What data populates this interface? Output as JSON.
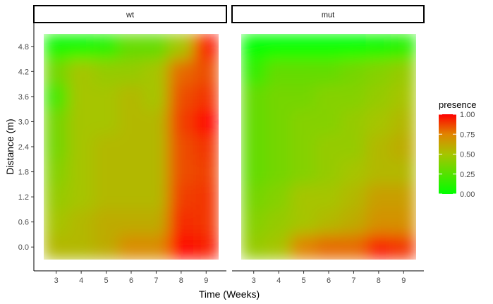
{
  "chart_data": {
    "type": "heatmap",
    "xlabel": "Time (Weeks)",
    "ylabel": "Distance (m)",
    "x": [
      3,
      4,
      5,
      6,
      7,
      8,
      9
    ],
    "y": [
      0.0,
      0.6,
      1.2,
      1.8,
      2.4,
      3.0,
      3.6,
      4.2,
      4.8
    ],
    "x_tick_labels": [
      "3",
      "4",
      "5",
      "6",
      "7",
      "8",
      "9"
    ],
    "y_tick_labels": [
      "0.0",
      "0.6",
      "1.2",
      "1.8",
      "2.4",
      "3.0",
      "3.6",
      "4.2",
      "4.8"
    ],
    "xlim": [
      2.5,
      9.5
    ],
    "ylim": [
      -0.3,
      5.1
    ],
    "grid": false,
    "interpolated": true,
    "legend": {
      "title": "presence",
      "position": "right",
      "ticks": [
        0.0,
        0.25,
        0.5,
        0.75,
        1.0
      ],
      "tick_labels": [
        "0.00",
        "0.25",
        "0.50",
        "0.75",
        "1.00"
      ],
      "low_color": "#00ff00",
      "high_color": "#ff0000"
    },
    "panels": [
      {
        "name": "wt",
        "z": [
          [
            0.55,
            0.55,
            0.6,
            0.72,
            0.72,
            1.0,
            0.95
          ],
          [
            0.5,
            0.55,
            0.6,
            0.6,
            0.6,
            0.92,
            0.9
          ],
          [
            0.45,
            0.5,
            0.55,
            0.55,
            0.55,
            0.88,
            0.9
          ],
          [
            0.4,
            0.5,
            0.55,
            0.55,
            0.55,
            0.85,
            0.88
          ],
          [
            0.35,
            0.5,
            0.55,
            0.55,
            0.55,
            0.85,
            0.9
          ],
          [
            0.35,
            0.5,
            0.5,
            0.55,
            0.55,
            0.88,
            1.0
          ],
          [
            0.2,
            0.5,
            0.5,
            0.55,
            0.5,
            0.85,
            0.9
          ],
          [
            0.35,
            0.5,
            0.45,
            0.45,
            0.5,
            0.8,
            0.85
          ],
          [
            0.05,
            0.05,
            0.1,
            0.3,
            0.3,
            0.5,
            0.95
          ]
        ]
      },
      {
        "name": "mut",
        "z": [
          [
            0.45,
            0.5,
            0.75,
            0.8,
            0.8,
            0.95,
            0.9
          ],
          [
            0.4,
            0.45,
            0.5,
            0.55,
            0.6,
            0.7,
            0.7
          ],
          [
            0.35,
            0.4,
            0.5,
            0.5,
            0.55,
            0.65,
            0.65
          ],
          [
            0.3,
            0.35,
            0.4,
            0.45,
            0.5,
            0.55,
            0.55
          ],
          [
            0.3,
            0.35,
            0.4,
            0.45,
            0.45,
            0.55,
            0.6
          ],
          [
            0.3,
            0.35,
            0.4,
            0.4,
            0.45,
            0.5,
            0.55
          ],
          [
            0.3,
            0.35,
            0.35,
            0.4,
            0.4,
            0.45,
            0.5
          ],
          [
            0.15,
            0.3,
            0.3,
            0.3,
            0.35,
            0.4,
            0.45
          ],
          [
            0.0,
            0.0,
            0.0,
            0.0,
            0.0,
            0.05,
            0.1
          ]
        ]
      }
    ]
  }
}
